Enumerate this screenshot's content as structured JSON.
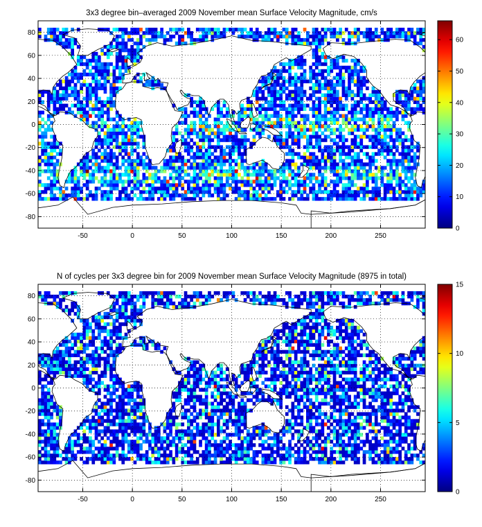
{
  "chart_data": [
    {
      "type": "heatmap",
      "title": "3x3 degree bin–averaged 2009 November mean Surface Velocity Magnitude, cm/s",
      "xlabel": "",
      "ylabel": "",
      "xlim": [
        -95,
        295
      ],
      "ylim": [
        -90,
        90
      ],
      "x_ticks": [
        -50,
        0,
        50,
        100,
        150,
        200,
        250
      ],
      "y_ticks": [
        -80,
        -60,
        -40,
        -20,
        0,
        20,
        40,
        60,
        80
      ],
      "x_tick_labels": [
        "-50",
        "0",
        "50",
        "100",
        "150",
        "200",
        "250"
      ],
      "y_tick_labels": [
        "-80",
        "-60",
        "-40",
        "-20",
        "0",
        "20",
        "40",
        "60",
        "80"
      ],
      "colorbar": {
        "min": 0,
        "max": 66,
        "ticks": [
          0,
          10,
          20,
          30,
          40,
          50,
          60
        ],
        "tick_labels": [
          "0",
          "10",
          "20",
          "30",
          "40",
          "50",
          "60"
        ],
        "colormap": "jet"
      },
      "grid": true,
      "bin_size_deg": 3,
      "field_model": "speed",
      "colors": {
        "land": "#ffffff",
        "coast": "#000000",
        "grid": "#000000"
      }
    },
    {
      "type": "heatmap",
      "title": "N of cycles per 3x3 degree bin for 2009 November mean Surface Velocity Magnitude (8975 in total)",
      "xlabel": "",
      "ylabel": "",
      "xlim": [
        -95,
        295
      ],
      "ylim": [
        -90,
        90
      ],
      "x_ticks": [
        -50,
        0,
        50,
        100,
        150,
        200,
        250
      ],
      "y_ticks": [
        -80,
        -60,
        -40,
        -20,
        0,
        20,
        40,
        60,
        80
      ],
      "x_tick_labels": [
        "-50",
        "0",
        "50",
        "100",
        "150",
        "200",
        "250"
      ],
      "y_tick_labels": [
        "-80",
        "-60",
        "-40",
        "-20",
        "0",
        "20",
        "40",
        "60",
        "80"
      ],
      "colorbar": {
        "min": 0,
        "max": 15,
        "ticks": [
          0,
          5,
          10,
          15
        ],
        "tick_labels": [
          "0",
          "5",
          "10",
          "15"
        ],
        "colormap": "jet"
      },
      "grid": true,
      "bin_size_deg": 3,
      "field_model": "count",
      "colors": {
        "land": "#ffffff",
        "coast": "#000000",
        "grid": "#000000"
      }
    }
  ]
}
